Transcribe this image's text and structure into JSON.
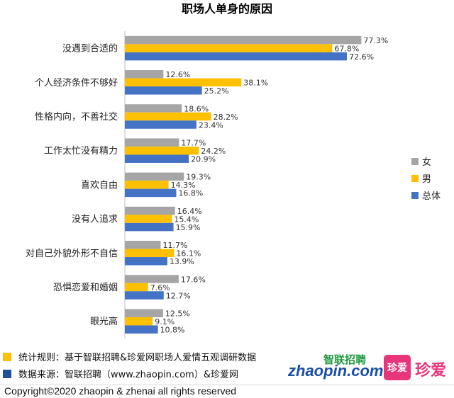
{
  "chart_data": {
    "type": "bar",
    "orientation": "horizontal",
    "title": "职场人单身的原因",
    "categories": [
      "没遇到合适的",
      "个人经济条件不够好",
      "性格内向，不善社交",
      "工作太忙没有精力",
      "喜欢自由",
      "没有人追求",
      "对自己外貌外形不自信",
      "恐惧恋爱和婚姻",
      "眼光高"
    ],
    "series": [
      {
        "name": "女",
        "color": "#a5a5a5",
        "values": [
          77.3,
          12.6,
          18.6,
          17.7,
          19.3,
          16.4,
          11.7,
          17.6,
          12.5
        ]
      },
      {
        "name": "男",
        "color": "#ffc000",
        "values": [
          67.8,
          38.1,
          28.2,
          24.2,
          14.3,
          15.4,
          16.1,
          7.6,
          9.1
        ]
      },
      {
        "name": "总体",
        "color": "#4472c4",
        "values": [
          72.6,
          25.2,
          23.4,
          20.9,
          16.8,
          15.9,
          13.9,
          12.7,
          10.8
        ]
      }
    ],
    "value_suffix": "%",
    "xlim": [
      0,
      80
    ],
    "grid": false,
    "legend_position": "right"
  },
  "footer": {
    "notes": [
      {
        "color": "#ffc000",
        "text": "统计规则：基于智联招聘&珍爱网职场人爱情五观调研数据"
      },
      {
        "color": "#1f4e9c",
        "text": "数据来源：智联招聘（www.zhaopin.com）&珍爱网"
      }
    ],
    "copyright": "Copyright©2020 zhaopin & zhenai  all rights reserved"
  },
  "logos": {
    "zhaopin_cn": "智联招聘",
    "zhaopin_en": "zhaopin.com",
    "zhenai_badge": "珍爱",
    "zhenai_text": "珍爱"
  }
}
